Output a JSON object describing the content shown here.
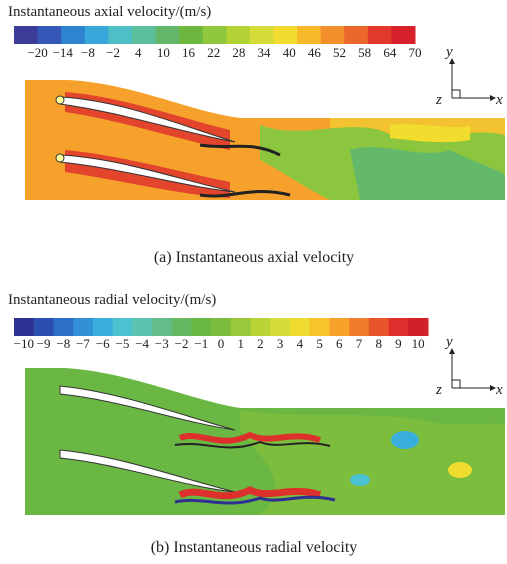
{
  "panels": [
    {
      "colorbar": {
        "title": "Instantaneous axial velocity/(m/s)",
        "ticks": [
          "−20",
          "−14",
          "−8",
          "−2",
          "4",
          "10",
          "16",
          "22",
          "28",
          "34",
          "40",
          "46",
          "52",
          "58",
          "64",
          "70"
        ],
        "colors": [
          "#3a3c98",
          "#3457b8",
          "#2f84cf",
          "#38a8da",
          "#4fbfc6",
          "#5cbf9c",
          "#62b76b",
          "#6cb83e",
          "#8fc73e",
          "#b3d235",
          "#d4dc3a",
          "#f1dc2f",
          "#f7b82a",
          "#f38f2a",
          "#ec672c",
          "#e13a2c",
          "#d6202a"
        ]
      },
      "axes": {
        "y": "y",
        "z": "z",
        "x": "x"
      },
      "caption": "(a) Instantaneous axial velocity"
    },
    {
      "colorbar": {
        "title": "Instantaneous radial velocity/(m/s)",
        "ticks": [
          "−10",
          "−9",
          "−8",
          "−7",
          "−6",
          "−5",
          "−4",
          "−3",
          "−2",
          "−1",
          "0",
          "1",
          "2",
          "3",
          "4",
          "5",
          "6",
          "7",
          "8",
          "9",
          "10"
        ],
        "colors": [
          "#2e3192",
          "#2b4fb0",
          "#2f6fc8",
          "#3190d6",
          "#3aaedc",
          "#4cc1cf",
          "#5bc3b0",
          "#62bd88",
          "#66b862",
          "#6bb743",
          "#7cbd3d",
          "#99c93b",
          "#b8d437",
          "#d6dc38",
          "#f0dc30",
          "#f7c52b",
          "#f5a12a",
          "#f07d2b",
          "#e8552c",
          "#dd2f2b",
          "#d0202a"
        ]
      },
      "axes": {
        "y": "y",
        "z": "z",
        "x": "x"
      },
      "caption": "(b) Instantaneous radial velocity"
    }
  ]
}
